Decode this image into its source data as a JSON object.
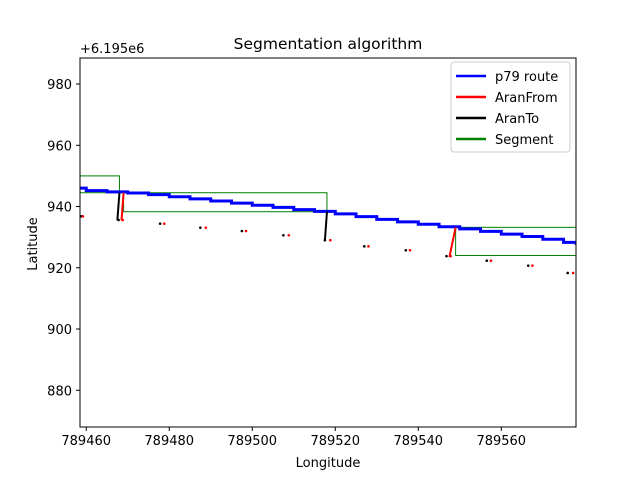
{
  "chart_data": {
    "type": "line",
    "title": "Segmentation algorithm",
    "xlabel": "Longitude",
    "ylabel": "Latitude",
    "offset_text": "+6.195e6",
    "xlim": [
      789458.5,
      789578
    ],
    "ylim": [
      868,
      988.5
    ],
    "xticks": [
      789460,
      789480,
      789500,
      789520,
      789540,
      789560
    ],
    "xtick_labels": [
      "789460",
      "789480",
      "789500",
      "789520",
      "789540",
      "789560"
    ],
    "yticks": [
      880,
      900,
      920,
      940,
      960,
      980
    ],
    "ytick_labels": [
      "880",
      "900",
      "920",
      "940",
      "960",
      "980"
    ],
    "legend": {
      "position": "top-right",
      "entries": [
        "p79 route",
        "AranFrom",
        "AranTo",
        "Segment"
      ]
    },
    "colors": {
      "route": "#0000ff",
      "from": "#ff0000",
      "to": "#000000",
      "segment": "#008000"
    },
    "series": [
      {
        "name": "p79 route",
        "x": [
          789458.5,
          789460,
          789465,
          789470,
          789475,
          789480,
          789485,
          789490,
          789495,
          789500,
          789505,
          789510,
          789515,
          789520,
          789525,
          789530,
          789535,
          789540,
          789545,
          789550,
          789555,
          789560,
          789565,
          789570,
          789575,
          789578
        ],
        "y": [
          946,
          945.2,
          944.8,
          944.4,
          943.9,
          943.2,
          942.5,
          941.8,
          941.1,
          940.4,
          939.7,
          939.0,
          938.4,
          937.6,
          936.7,
          935.8,
          935.0,
          934.2,
          933.4,
          932.7,
          931.9,
          931.0,
          930.2,
          929.3,
          928.3,
          927.5
        ]
      },
      {
        "name": "AranFrom",
        "segments": [
          {
            "x": [
              789469,
              789468.5
            ],
            "y": [
              944.5,
              935.5
            ]
          },
          {
            "x": [
              789549,
              789547.5
            ],
            "y": [
              933.2,
              923.5
            ]
          }
        ]
      },
      {
        "name": "AranTo",
        "segments": [
          {
            "x": [
              789468,
              789467.5
            ],
            "y": [
              944.5,
              935.5
            ]
          },
          {
            "x": [
              789518,
              789517.5
            ],
            "y": [
              938.3,
              928.8
            ]
          }
        ]
      },
      {
        "name": "Segment",
        "rects": [
          {
            "x0": 789458.5,
            "x1": 789468,
            "y0": 944.5,
            "y1": 950
          },
          {
            "x0": 789469,
            "x1": 789518,
            "y0": 938.3,
            "y1": 944.5
          },
          {
            "x0": 789549,
            "x1": 789578,
            "y0": 924,
            "y1": 933.2
          }
        ]
      }
    ],
    "points_black": [
      [
        789458.8,
        936.8
      ],
      [
        789467.8,
        935.6
      ],
      [
        789477.8,
        934.4
      ],
      [
        789487.5,
        933.1
      ],
      [
        789497.5,
        932.0
      ],
      [
        789507.5,
        930.6
      ],
      [
        789517.5,
        929.0
      ],
      [
        789527.0,
        927.0
      ],
      [
        789537.0,
        925.7
      ],
      [
        789546.8,
        923.8
      ],
      [
        789556.5,
        922.3
      ],
      [
        789566.5,
        920.7
      ],
      [
        789576.0,
        918.3
      ]
    ],
    "points_red": [
      [
        789459.2,
        936.8
      ],
      [
        789468.8,
        935.6
      ],
      [
        789478.8,
        934.4
      ],
      [
        789488.8,
        933.1
      ],
      [
        789498.5,
        932.0
      ],
      [
        789508.8,
        930.6
      ],
      [
        789518.8,
        929.0
      ],
      [
        789528.0,
        927.0
      ],
      [
        789538.0,
        925.7
      ],
      [
        789547.8,
        923.8
      ],
      [
        789557.5,
        922.3
      ],
      [
        789567.5,
        920.7
      ],
      [
        789577.3,
        918.3
      ]
    ]
  }
}
